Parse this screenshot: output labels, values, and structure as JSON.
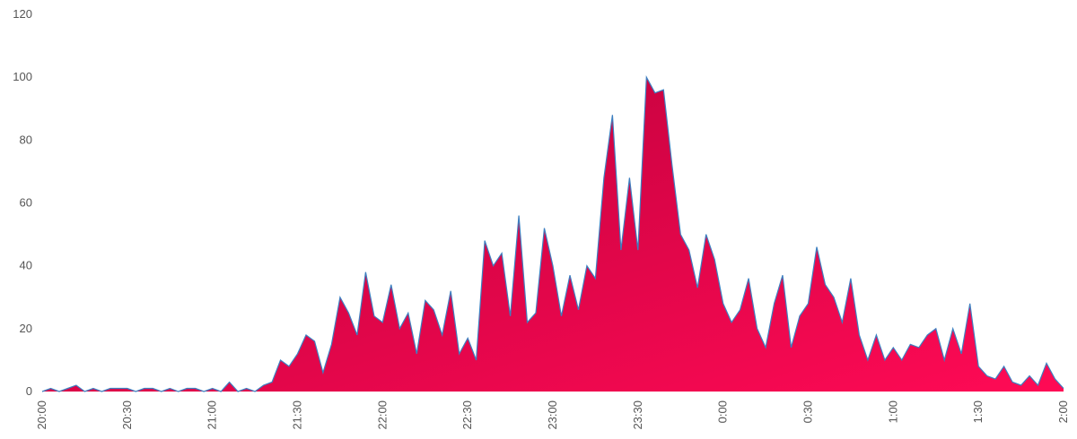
{
  "chart_data": {
    "type": "area",
    "categories": [
      "20:00",
      null,
      null,
      null,
      null,
      null,
      null,
      null,
      null,
      null,
      "20:30",
      null,
      null,
      null,
      null,
      null,
      null,
      null,
      null,
      null,
      "21:00",
      null,
      null,
      null,
      null,
      null,
      null,
      null,
      null,
      null,
      "21:30",
      null,
      null,
      null,
      null,
      null,
      null,
      null,
      null,
      null,
      "22:00",
      null,
      null,
      null,
      null,
      null,
      null,
      null,
      null,
      null,
      "22:30",
      null,
      null,
      null,
      null,
      null,
      null,
      null,
      null,
      null,
      "23:00",
      null,
      null,
      null,
      null,
      null,
      null,
      null,
      null,
      null,
      "23:30",
      null,
      null,
      null,
      null,
      null,
      null,
      null,
      null,
      null,
      "0:00",
      null,
      null,
      null,
      null,
      null,
      null,
      null,
      null,
      null,
      "0:30",
      null,
      null,
      null,
      null,
      null,
      null,
      null,
      null,
      null,
      "1:00",
      null,
      null,
      null,
      null,
      null,
      null,
      null,
      null,
      null,
      "1:30",
      null,
      null,
      null,
      null,
      null,
      null,
      null,
      null,
      null,
      "2:00"
    ],
    "values": [
      0,
      1,
      0,
      1,
      2,
      0,
      1,
      0,
      1,
      1,
      1,
      0,
      1,
      1,
      0,
      1,
      0,
      1,
      1,
      0,
      1,
      0,
      3,
      0,
      1,
      0,
      2,
      3,
      10,
      8,
      12,
      18,
      16,
      6,
      15,
      30,
      25,
      18,
      38,
      24,
      22,
      34,
      20,
      25,
      12,
      29,
      26,
      18,
      32,
      12,
      17,
      10,
      48,
      40,
      44,
      24,
      56,
      22,
      25,
      52,
      40,
      24,
      37,
      26,
      40,
      36,
      68,
      88,
      45,
      68,
      45,
      100,
      95,
      96,
      72,
      50,
      45,
      33,
      50,
      42,
      28,
      22,
      26,
      36,
      20,
      14,
      28,
      37,
      14,
      24,
      28,
      46,
      34,
      30,
      22,
      36,
      18,
      10,
      18,
      10,
      14,
      10,
      15,
      14,
      18,
      20,
      10,
      20,
      12,
      28,
      8,
      5,
      4,
      8,
      3,
      2,
      5,
      2,
      9,
      4,
      1
    ],
    "color": "#e8004a",
    "line_color": "#3d7fc0",
    "ylim": [
      0,
      120
    ],
    "yticks": [
      0,
      20,
      40,
      60,
      80,
      100,
      120
    ]
  }
}
